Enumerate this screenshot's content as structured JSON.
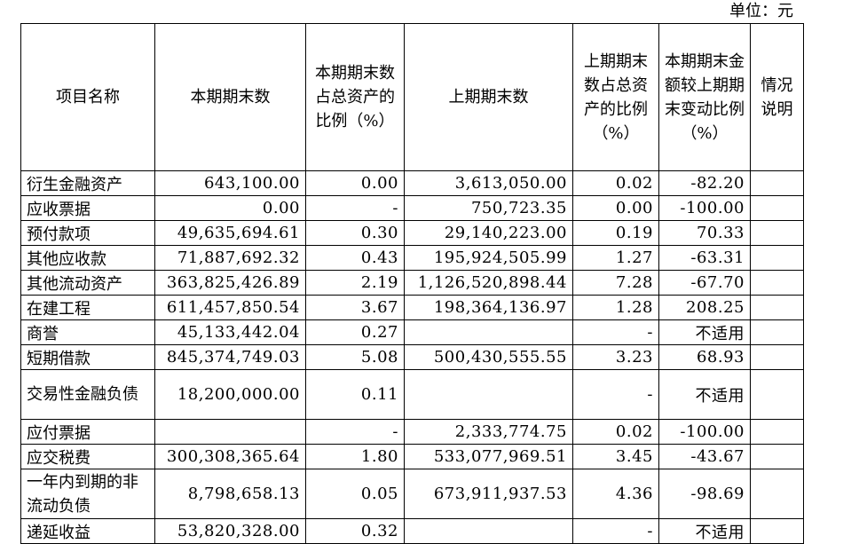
{
  "unit_label": "单位：元",
  "headers": [
    "项目名称",
    "本期期末数",
    "本期期末数占总资产的比例（%）",
    "上期期末数",
    "上期期末数占总资产的比例（%）",
    "本期期末金额较上期期末变动比例（%）",
    "情况说明"
  ],
  "rows": [
    {
      "name": "衍生金融资产",
      "cur": "643,100.00",
      "cur_pct": "0.00",
      "prev": "3,613,050.00",
      "prev_pct": "0.02",
      "chg": "-82.20",
      "note": ""
    },
    {
      "name": "应收票据",
      "cur": "0.00",
      "cur_pct": "-",
      "prev": "750,723.35",
      "prev_pct": "0.00",
      "chg": "-100.00",
      "note": ""
    },
    {
      "name": "预付款项",
      "cur": "49,635,694.61",
      "cur_pct": "0.30",
      "prev": "29,140,223.00",
      "prev_pct": "0.19",
      "chg": "70.33",
      "note": ""
    },
    {
      "name": "其他应收款",
      "cur": "71,887,692.32",
      "cur_pct": "0.43",
      "prev": "195,924,505.99",
      "prev_pct": "1.27",
      "chg": "-63.31",
      "note": ""
    },
    {
      "name": "其他流动资产",
      "cur": "363,825,426.89",
      "cur_pct": "2.19",
      "prev": "1,126,520,898.44",
      "prev_pct": "7.28",
      "chg": "-67.70",
      "note": ""
    },
    {
      "name": "在建工程",
      "cur": "611,457,850.54",
      "cur_pct": "3.67",
      "prev": "198,364,136.97",
      "prev_pct": "1.28",
      "chg": "208.25",
      "note": ""
    },
    {
      "name": "商誉",
      "cur": "45,133,442.04",
      "cur_pct": "0.27",
      "prev": "",
      "prev_pct": "-",
      "chg": "不适用",
      "note": ""
    },
    {
      "name": "短期借款",
      "cur": "845,374,749.03",
      "cur_pct": "5.08",
      "prev": "500,430,555.55",
      "prev_pct": "3.23",
      "chg": "68.93",
      "note": ""
    },
    {
      "name": "交易性金融负债",
      "cur": "18,200,000.00",
      "cur_pct": "0.11",
      "prev": "",
      "prev_pct": "-",
      "chg": "不适用",
      "note": ""
    },
    {
      "name": "应付票据",
      "cur": "",
      "cur_pct": "-",
      "prev": "2,333,774.75",
      "prev_pct": "0.02",
      "chg": "-100.00",
      "note": ""
    },
    {
      "name": "应交税费",
      "cur": "300,308,365.64",
      "cur_pct": "1.80",
      "prev": "533,077,969.51",
      "prev_pct": "3.45",
      "chg": "-43.67",
      "note": ""
    },
    {
      "name": "一年内到期的非流动负债",
      "cur": "8,798,658.13",
      "cur_pct": "0.05",
      "prev": "673,911,937.53",
      "prev_pct": "4.36",
      "chg": "-98.69",
      "note": ""
    },
    {
      "name": "递延收益",
      "cur": "53,820,328.00",
      "cur_pct": "0.32",
      "prev": "",
      "prev_pct": "-",
      "chg": "不适用",
      "note": ""
    }
  ]
}
